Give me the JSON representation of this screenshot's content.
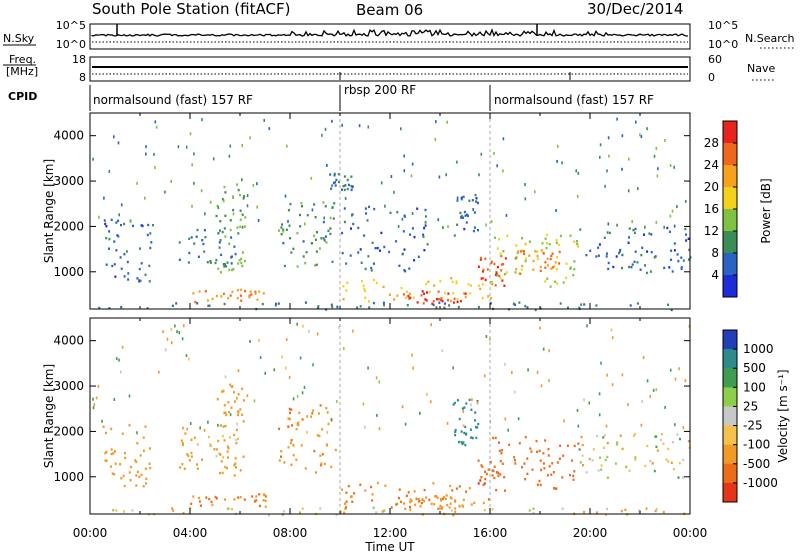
{
  "header": {
    "station": "South Pole Station (fitACF)",
    "beam": "Beam 06",
    "date": "30/Dec/2014"
  },
  "sky_panel": {
    "left_label": "N.Sky",
    "left_ticks": [
      "10^5",
      "10^0"
    ],
    "right_label": "N.Search",
    "right_ticks": [
      "10^5",
      "10^0"
    ]
  },
  "freq_panel": {
    "left_label_top": "Freq.",
    "left_label_bottom": "[MHz]",
    "left_ticks": [
      "18",
      "8"
    ],
    "right_label": "Nave",
    "right_ticks": [
      "60",
      "0"
    ]
  },
  "cpid": {
    "label": "CPID",
    "segments": [
      {
        "text": "normalsound (fast) 157 RF",
        "start_hour": 0,
        "end_hour": 10
      },
      {
        "text": "rbsp 200 RF",
        "start_hour": 10,
        "end_hour": 16
      },
      {
        "text": "normalsound (fast) 157 RF",
        "start_hour": 16,
        "end_hour": 24
      }
    ]
  },
  "x_axis": {
    "label": "Time UT",
    "ticks": [
      "00:00",
      "04:00",
      "08:00",
      "12:00",
      "16:00",
      "20:00",
      "00:00"
    ]
  },
  "power_colorbar": {
    "label": "Power [dB]",
    "ticks": [
      "4",
      "8",
      "12",
      "16",
      "20",
      "24",
      "28"
    ],
    "colors": [
      "#1d2bd8",
      "#2b63c4",
      "#3c8d55",
      "#7fc241",
      "#f4d21a",
      "#f6a21c",
      "#f0661d",
      "#e8231d"
    ]
  },
  "velocity_colorbar": {
    "label": "Velocity [m s⁻¹]",
    "ticks": [
      "1000",
      "500",
      "100",
      "25",
      "-25",
      "-100",
      "-500",
      "-1000"
    ],
    "colors": [
      "#2140b8",
      "#2f8a8c",
      "#3f9d52",
      "#8ccf4a",
      "#c8c8c8",
      "#f6c04c",
      "#f19a27",
      "#eb6d1b",
      "#e6341a"
    ]
  },
  "chart_data": [
    {
      "type": "heatmap",
      "title": "",
      "xlabel": "Time UT",
      "ylabel": "Slant Range [km]",
      "xlim": [
        0,
        24
      ],
      "ylim": [
        180,
        4500
      ],
      "yticks": [
        1000,
        2000,
        3000,
        4000
      ],
      "colorbar_label": "Power [dB]",
      "colorbar_range": [
        0,
        30
      ],
      "regions": [
        {
          "t0": 0.2,
          "t1": 23.8,
          "r0": 180,
          "r1": 350,
          "value": 8
        },
        {
          "t0": 4.0,
          "t1": 7.0,
          "r0": 350,
          "r1": 650,
          "value": 22
        },
        {
          "t0": 5.0,
          "t1": 6.2,
          "r0": 1000,
          "r1": 3100,
          "value": 12
        },
        {
          "t0": 0.5,
          "t1": 2.5,
          "r0": 800,
          "r1": 2200,
          "value": 6
        },
        {
          "t0": 3.5,
          "t1": 6.0,
          "r0": 1200,
          "r1": 2000,
          "value": 8
        },
        {
          "t0": 7.5,
          "t1": 9.8,
          "r0": 1100,
          "r1": 2600,
          "value": 10
        },
        {
          "t0": 9.5,
          "t1": 10.5,
          "r0": 2800,
          "r1": 3200,
          "value": 7
        },
        {
          "t0": 10.0,
          "t1": 16.0,
          "r0": 350,
          "r1": 900,
          "value": 18
        },
        {
          "t0": 12.5,
          "t1": 15.0,
          "r0": 300,
          "r1": 600,
          "value": 27
        },
        {
          "t0": 10.0,
          "t1": 13.5,
          "r0": 1000,
          "r1": 2500,
          "value": 6
        },
        {
          "t0": 14.5,
          "t1": 15.5,
          "r0": 1700,
          "r1": 2800,
          "value": 6
        },
        {
          "t0": 15.5,
          "t1": 16.6,
          "r0": 700,
          "r1": 1400,
          "value": 27
        },
        {
          "t0": 16.0,
          "t1": 19.5,
          "r0": 700,
          "r1": 1900,
          "value": 15
        },
        {
          "t0": 17.0,
          "t1": 19.0,
          "r0": 900,
          "r1": 1500,
          "value": 23
        },
        {
          "t0": 19.5,
          "t1": 24.0,
          "r0": 1000,
          "r1": 2000,
          "value": 6
        }
      ]
    },
    {
      "type": "heatmap",
      "title": "",
      "xlabel": "Time UT",
      "ylabel": "Slant Range [km]",
      "xlim": [
        0,
        24
      ],
      "ylim": [
        180,
        4500
      ],
      "yticks": [
        1000,
        2000,
        3000,
        4000
      ],
      "colorbar_label": "Velocity [m s⁻¹]",
      "colorbar_range": [
        -1000,
        1000
      ],
      "regions": [
        {
          "t0": 0.2,
          "t1": 23.8,
          "r0": 180,
          "r1": 350,
          "value": -25
        },
        {
          "t0": 4.0,
          "t1": 7.0,
          "r0": 350,
          "r1": 650,
          "value": -300
        },
        {
          "t0": 5.0,
          "t1": 6.2,
          "r0": 1000,
          "r1": 3100,
          "value": -200
        },
        {
          "t0": 0.5,
          "t1": 2.5,
          "r0": 800,
          "r1": 2200,
          "value": -150
        },
        {
          "t0": 3.5,
          "t1": 6.0,
          "r0": 1200,
          "r1": 2000,
          "value": -100
        },
        {
          "t0": 7.5,
          "t1": 9.8,
          "r0": 1100,
          "r1": 2600,
          "value": -250
        },
        {
          "t0": 10.0,
          "t1": 16.0,
          "r0": 350,
          "r1": 900,
          "value": -300
        },
        {
          "t0": 12.5,
          "t1": 15.0,
          "r0": 300,
          "r1": 600,
          "value": -200
        },
        {
          "t0": 14.5,
          "t1": 15.5,
          "r0": 1700,
          "r1": 2800,
          "value": 500
        },
        {
          "t0": 15.5,
          "t1": 16.6,
          "r0": 700,
          "r1": 1400,
          "value": -700
        },
        {
          "t0": 16.0,
          "t1": 19.5,
          "r0": 700,
          "r1": 1900,
          "value": -400
        },
        {
          "t0": 19.5,
          "t1": 24.0,
          "r0": 1000,
          "r1": 2000,
          "value": 0
        }
      ]
    }
  ]
}
